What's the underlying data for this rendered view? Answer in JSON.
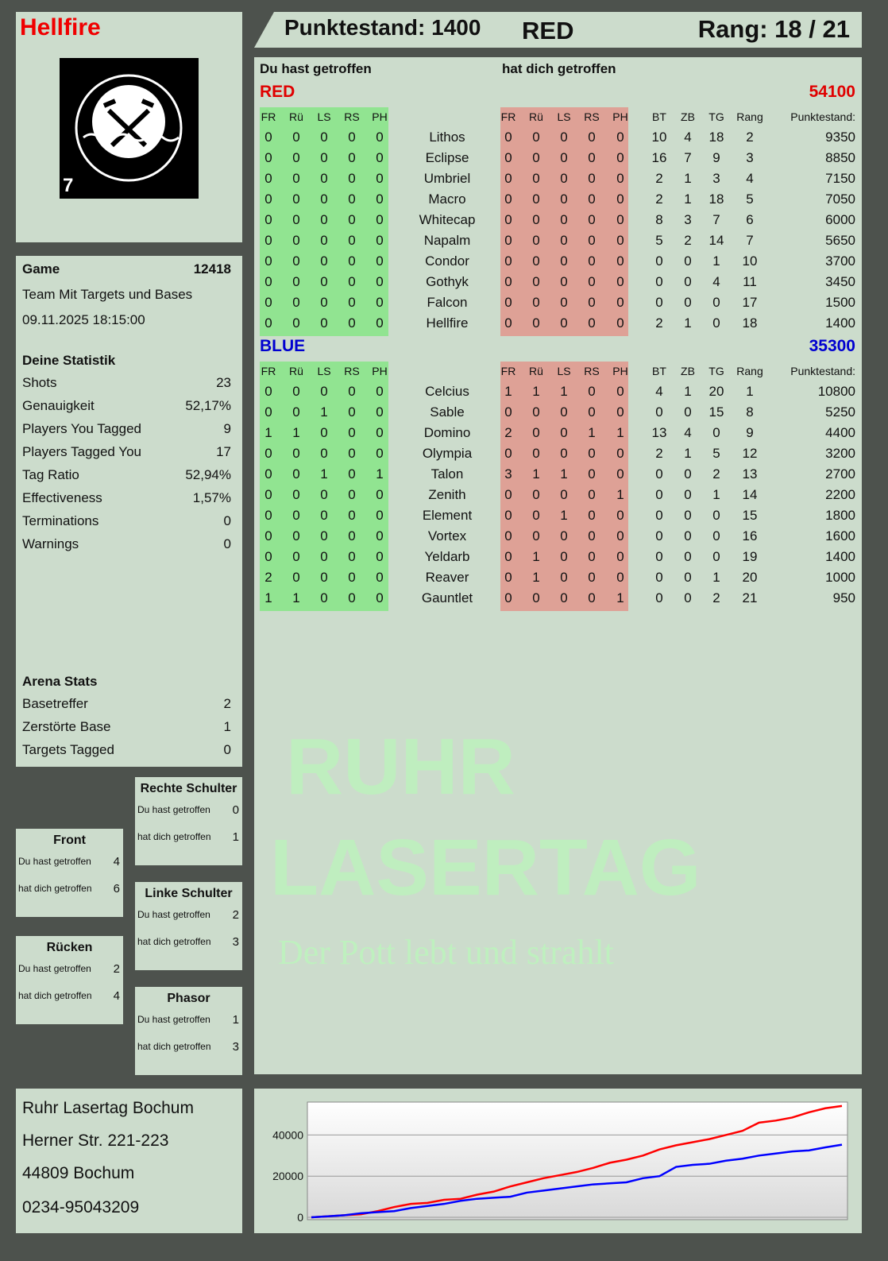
{
  "player": {
    "name": "Hellfire",
    "logo_text": "RUHR LASERTAG",
    "logo_number": "7"
  },
  "header": {
    "score_label": "Punktestand: 1400",
    "team": "RED",
    "rank": "Rang: 18 / 21"
  },
  "table": {
    "you_hit_label": "Du hast getroffen",
    "hit_you_label": "hat dich getroffen",
    "hit_columns": [
      "FR",
      "Rü",
      "LS",
      "RS",
      "PH"
    ],
    "stat_columns": [
      "BT",
      "ZB",
      "TG",
      "Rang",
      "Punktestand:"
    ],
    "teams": [
      {
        "name": "RED",
        "score": "54100",
        "color": "#e00000",
        "players": [
          {
            "name": "Lithos",
            "you_hit": [
              0,
              0,
              0,
              0,
              0
            ],
            "hit_you": [
              0,
              0,
              0,
              0,
              0
            ],
            "stats": [
              10,
              4,
              18,
              2,
              9350
            ]
          },
          {
            "name": "Eclipse",
            "you_hit": [
              0,
              0,
              0,
              0,
              0
            ],
            "hit_you": [
              0,
              0,
              0,
              0,
              0
            ],
            "stats": [
              16,
              7,
              9,
              3,
              8850
            ]
          },
          {
            "name": "Umbriel",
            "you_hit": [
              0,
              0,
              0,
              0,
              0
            ],
            "hit_you": [
              0,
              0,
              0,
              0,
              0
            ],
            "stats": [
              2,
              1,
              3,
              4,
              7150
            ]
          },
          {
            "name": "Macro",
            "you_hit": [
              0,
              0,
              0,
              0,
              0
            ],
            "hit_you": [
              0,
              0,
              0,
              0,
              0
            ],
            "stats": [
              2,
              1,
              18,
              5,
              7050
            ]
          },
          {
            "name": "Whitecap",
            "you_hit": [
              0,
              0,
              0,
              0,
              0
            ],
            "hit_you": [
              0,
              0,
              0,
              0,
              0
            ],
            "stats": [
              8,
              3,
              7,
              6,
              6000
            ]
          },
          {
            "name": "Napalm",
            "you_hit": [
              0,
              0,
              0,
              0,
              0
            ],
            "hit_you": [
              0,
              0,
              0,
              0,
              0
            ],
            "stats": [
              5,
              2,
              14,
              7,
              5650
            ]
          },
          {
            "name": "Condor",
            "you_hit": [
              0,
              0,
              0,
              0,
              0
            ],
            "hit_you": [
              0,
              0,
              0,
              0,
              0
            ],
            "stats": [
              0,
              0,
              1,
              10,
              3700
            ]
          },
          {
            "name": "Gothyk",
            "you_hit": [
              0,
              0,
              0,
              0,
              0
            ],
            "hit_you": [
              0,
              0,
              0,
              0,
              0
            ],
            "stats": [
              0,
              0,
              4,
              11,
              3450
            ]
          },
          {
            "name": "Falcon",
            "you_hit": [
              0,
              0,
              0,
              0,
              0
            ],
            "hit_you": [
              0,
              0,
              0,
              0,
              0
            ],
            "stats": [
              0,
              0,
              0,
              17,
              1500
            ]
          },
          {
            "name": "Hellfire",
            "you_hit": [
              0,
              0,
              0,
              0,
              0
            ],
            "hit_you": [
              0,
              0,
              0,
              0,
              0
            ],
            "stats": [
              2,
              1,
              0,
              18,
              1400
            ]
          }
        ]
      },
      {
        "name": "BLUE",
        "score": "35300",
        "color": "#0000d0",
        "players": [
          {
            "name": "Celcius",
            "you_hit": [
              0,
              0,
              0,
              0,
              0
            ],
            "hit_you": [
              1,
              1,
              1,
              0,
              0
            ],
            "stats": [
              4,
              1,
              20,
              1,
              10800
            ]
          },
          {
            "name": "Sable",
            "you_hit": [
              0,
              0,
              1,
              0,
              0
            ],
            "hit_you": [
              0,
              0,
              0,
              0,
              0
            ],
            "stats": [
              0,
              0,
              15,
              8,
              5250
            ]
          },
          {
            "name": "Domino",
            "you_hit": [
              1,
              1,
              0,
              0,
              0
            ],
            "hit_you": [
              2,
              0,
              0,
              1,
              1
            ],
            "stats": [
              13,
              4,
              0,
              9,
              4400
            ]
          },
          {
            "name": "Olympia",
            "you_hit": [
              0,
              0,
              0,
              0,
              0
            ],
            "hit_you": [
              0,
              0,
              0,
              0,
              0
            ],
            "stats": [
              2,
              1,
              5,
              12,
              3200
            ]
          },
          {
            "name": "Talon",
            "you_hit": [
              0,
              0,
              1,
              0,
              1
            ],
            "hit_you": [
              3,
              1,
              1,
              0,
              0
            ],
            "stats": [
              0,
              0,
              2,
              13,
              2700
            ]
          },
          {
            "name": "Zenith",
            "you_hit": [
              0,
              0,
              0,
              0,
              0
            ],
            "hit_you": [
              0,
              0,
              0,
              0,
              1
            ],
            "stats": [
              0,
              0,
              1,
              14,
              2200
            ]
          },
          {
            "name": "Element",
            "you_hit": [
              0,
              0,
              0,
              0,
              0
            ],
            "hit_you": [
              0,
              0,
              1,
              0,
              0
            ],
            "stats": [
              0,
              0,
              0,
              15,
              1800
            ]
          },
          {
            "name": "Vortex",
            "you_hit": [
              0,
              0,
              0,
              0,
              0
            ],
            "hit_you": [
              0,
              0,
              0,
              0,
              0
            ],
            "stats": [
              0,
              0,
              0,
              16,
              1600
            ]
          },
          {
            "name": "Yeldarb",
            "you_hit": [
              0,
              0,
              0,
              0,
              0
            ],
            "hit_you": [
              0,
              1,
              0,
              0,
              0
            ],
            "stats": [
              0,
              0,
              0,
              19,
              1400
            ]
          },
          {
            "name": "Reaver",
            "you_hit": [
              2,
              0,
              0,
              0,
              0
            ],
            "hit_you": [
              0,
              1,
              0,
              0,
              0
            ],
            "stats": [
              0,
              0,
              1,
              20,
              1000
            ]
          },
          {
            "name": "Gauntlet",
            "you_hit": [
              1,
              1,
              0,
              0,
              0
            ],
            "hit_you": [
              0,
              0,
              0,
              0,
              1
            ],
            "stats": [
              0,
              0,
              2,
              21,
              950
            ]
          }
        ]
      }
    ]
  },
  "game": {
    "label": "Game",
    "id": "12418",
    "mode": "Team Mit Targets und Bases",
    "datetime": "09.11.2025 18:15:00"
  },
  "stats": {
    "title": "Deine Statistik",
    "items": [
      {
        "label": "Shots",
        "value": "23"
      },
      {
        "label": "Genauigkeit",
        "value": "52,17%"
      },
      {
        "label": "Players You Tagged",
        "value": "9"
      },
      {
        "label": "Players Tagged You",
        "value": "17"
      },
      {
        "label": "Tag Ratio",
        "value": "52,94%"
      },
      {
        "label": "Effectiveness",
        "value": "1,57%"
      },
      {
        "label": "Terminations",
        "value": "0"
      },
      {
        "label": "Warnings",
        "value": "0"
      }
    ]
  },
  "arena": {
    "title": "Arena Stats",
    "items": [
      {
        "label": "Basetreffer",
        "value": "2"
      },
      {
        "label": "Zerstörte Base",
        "value": "1"
      },
      {
        "label": "Targets Tagged",
        "value": "0"
      }
    ]
  },
  "zones": [
    {
      "title": "Rechte Schulter",
      "you_hit_label": "Du hast getroffen",
      "you_hit": "0",
      "hit_you_label": "hat dich getroffen",
      "hit_you": "1"
    },
    {
      "title": "Front",
      "you_hit_label": "Du hast getroffen",
      "you_hit": "4",
      "hit_you_label": "hat dich getroffen",
      "hit_you": "6"
    },
    {
      "title": "Linke Schulter",
      "you_hit_label": "Du hast getroffen",
      "you_hit": "2",
      "hit_you_label": "hat dich getroffen",
      "hit_you": "3"
    },
    {
      "title": "Rücken",
      "you_hit_label": "Du hast getroffen",
      "you_hit": "2",
      "hit_you_label": "hat dich getroffen",
      "hit_you": "4"
    },
    {
      "title": "Phasor",
      "you_hit_label": "Du hast getroffen",
      "you_hit": "1",
      "hit_you_label": "hat dich getroffen",
      "hit_you": "3"
    }
  ],
  "address": {
    "name": "Ruhr Lasertag Bochum",
    "street": "Herner Str. 221-223",
    "city": "44809 Bochum",
    "phone": "0234-95043209"
  },
  "watermark": {
    "line1": "RUHR",
    "line2": "LASERTAG",
    "slogan": "Der Pott lebt und strahlt"
  },
  "chart_data": {
    "type": "line",
    "ylim": [
      0,
      56000
    ],
    "yticks": [
      0,
      20000,
      40000
    ],
    "grid": true,
    "series": [
      {
        "color": "#ff0000",
        "values": [
          0,
          500,
          1000,
          1500,
          3000,
          5000,
          6500,
          7000,
          8500,
          9000,
          11000,
          12500,
          15000,
          17000,
          19000,
          20500,
          22000,
          24000,
          26500,
          28000,
          30000,
          33000,
          35000,
          36500,
          38000,
          40000,
          42000,
          46000,
          47000,
          48500,
          51000,
          53000,
          54100
        ]
      },
      {
        "color": "#0000ff",
        "values": [
          0,
          500,
          1000,
          2000,
          2500,
          3000,
          4500,
          5500,
          6500,
          8000,
          9000,
          9500,
          10000,
          12000,
          13000,
          14000,
          15000,
          16000,
          16500,
          17000,
          19000,
          20000,
          24500,
          25500,
          26000,
          27500,
          28500,
          30000,
          31000,
          32000,
          32500,
          34000,
          35300
        ]
      }
    ]
  }
}
